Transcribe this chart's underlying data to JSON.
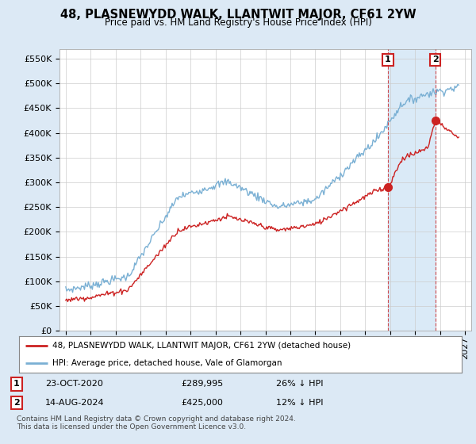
{
  "title": "48, PLASNEWYDD WALK, LLANTWIT MAJOR, CF61 2YW",
  "subtitle": "Price paid vs. HM Land Registry's House Price Index (HPI)",
  "ylabel_ticks": [
    "£0",
    "£50K",
    "£100K",
    "£150K",
    "£200K",
    "£250K",
    "£300K",
    "£350K",
    "£400K",
    "£450K",
    "£500K",
    "£550K"
  ],
  "ytick_values": [
    0,
    50000,
    100000,
    150000,
    200000,
    250000,
    300000,
    350000,
    400000,
    450000,
    500000,
    550000
  ],
  "ylim": [
    0,
    570000
  ],
  "xlim_start": 1994.5,
  "xlim_end": 2027.5,
  "hpi_color": "#7ab0d4",
  "price_color": "#cc2222",
  "marker1_x": 2020.82,
  "marker1_y": 289995,
  "marker2_x": 2024.62,
  "marker2_y": 425000,
  "shade_color": "#daeaf7",
  "legend_label_price": "48, PLASNEWYDD WALK, LLANTWIT MAJOR, CF61 2YW (detached house)",
  "legend_label_hpi": "HPI: Average price, detached house, Vale of Glamorgan",
  "footer": "Contains HM Land Registry data © Crown copyright and database right 2024.\nThis data is licensed under the Open Government Licence v3.0.",
  "bg_color": "#dce9f5",
  "plot_bg_color": "#ffffff",
  "grid_color": "#cccccc",
  "xticks": [
    1995,
    1997,
    1999,
    2001,
    2003,
    2005,
    2007,
    2009,
    2011,
    2013,
    2015,
    2017,
    2019,
    2021,
    2023,
    2025,
    2027
  ]
}
